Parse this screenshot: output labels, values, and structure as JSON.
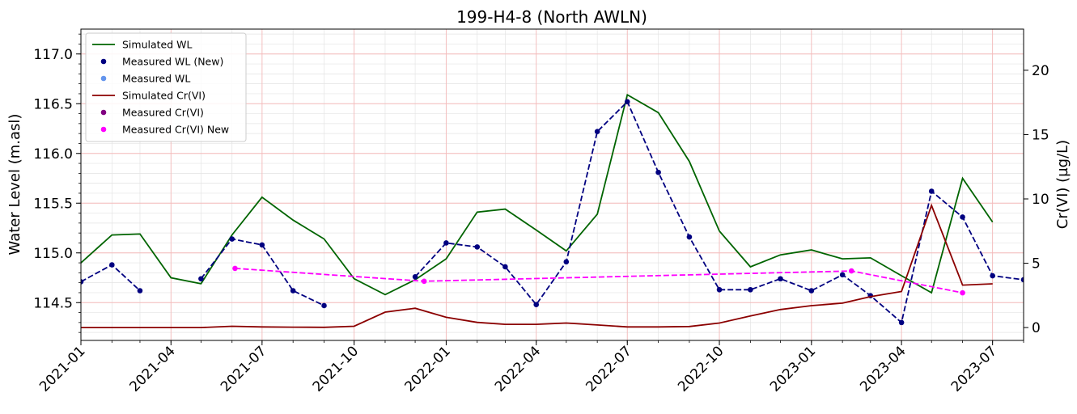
{
  "chart_data": {
    "type": "line",
    "title": "199-H4-8 (North AWLN)",
    "ylabel": "Water Level (m.asl)",
    "y2label": "Cr(VI) (µg/L)",
    "xlim": [
      "2021-01-01",
      "2023-08-01"
    ],
    "ylim": [
      114.12,
      117.25
    ],
    "y2lim": [
      -1,
      23.2
    ],
    "x_ticks": [
      "2021-01",
      "2021-04",
      "2021-07",
      "2021-10",
      "2022-01",
      "2022-04",
      "2022-07",
      "2022-10",
      "2023-01",
      "2023-04",
      "2023-07"
    ],
    "y_ticks": [
      114.5,
      115.0,
      115.5,
      116.0,
      116.5,
      117.0
    ],
    "y_tick_labels": [
      "114.5",
      "115.0",
      "115.5",
      "116.0",
      "116.5",
      "117.0"
    ],
    "y2_ticks": [
      0,
      5,
      10,
      15,
      20
    ],
    "y2_tick_labels": [
      "0",
      "5",
      "10",
      "15",
      "20"
    ],
    "grid": true,
    "legend_position": "top-left",
    "series": [
      {
        "name": "Simulated WL",
        "axis": "left",
        "kind": "line",
        "color": "#006400",
        "x": [
          "2021-01-01",
          "2021-02-01",
          "2021-03-01",
          "2021-04-01",
          "2021-05-01",
          "2021-06-01",
          "2021-07-01",
          "2021-08-01",
          "2021-09-01",
          "2021-10-01",
          "2021-11-01",
          "2021-12-01",
          "2022-01-01",
          "2022-02-01",
          "2022-03-01",
          "2022-04-01",
          "2022-05-01",
          "2022-06-01",
          "2022-07-01",
          "2022-08-01",
          "2022-09-01",
          "2022-10-01",
          "2022-11-01",
          "2022-12-01",
          "2023-01-01",
          "2023-02-01",
          "2023-03-01",
          "2023-04-01",
          "2023-05-01",
          "2023-06-01",
          "2023-07-01"
        ],
        "y": [
          114.9,
          115.18,
          115.19,
          114.75,
          114.69,
          115.18,
          115.56,
          115.33,
          115.14,
          114.74,
          114.58,
          114.73,
          114.94,
          115.41,
          115.44,
          115.23,
          115.02,
          115.39,
          116.59,
          116.41,
          115.92,
          115.22,
          114.86,
          114.98,
          115.03,
          114.94,
          114.95,
          114.77,
          114.6,
          115.75,
          115.31
        ]
      },
      {
        "name": "Measured WL (New)",
        "axis": "left",
        "kind": "dashed-markers",
        "color": "#000080",
        "segments": [
          {
            "x": [
              "2021-01-01",
              "2021-02-01",
              "2021-03-01"
            ],
            "y": [
              114.71,
              114.88,
              114.62
            ]
          },
          {
            "x": [
              "2021-05-01",
              "2021-06-01",
              "2021-07-01",
              "2021-08-01",
              "2021-09-01"
            ],
            "y": [
              114.74,
              115.14,
              115.08,
              114.62,
              114.47
            ]
          },
          {
            "x": [
              "2021-12-01",
              "2022-01-01",
              "2022-02-01",
              "2022-03-01",
              "2022-04-01",
              "2022-05-01",
              "2022-06-01",
              "2022-07-01",
              "2022-08-01",
              "2022-09-01",
              "2022-10-01",
              "2022-11-01",
              "2022-12-01",
              "2023-01-01",
              "2023-02-01",
              "2023-03-01",
              "2023-04-01",
              "2023-05-01",
              "2023-06-01",
              "2023-07-01",
              "2023-08-01"
            ],
            "y": [
              114.76,
              115.1,
              115.06,
              114.86,
              114.48,
              114.91,
              116.22,
              116.52,
              115.81,
              115.16,
              114.63,
              114.63,
              114.74,
              114.62,
              114.78,
              114.57,
              114.3,
              115.62,
              115.36,
              114.77,
              114.73
            ]
          }
        ]
      },
      {
        "name": "Measured WL",
        "axis": "left",
        "kind": "markers",
        "color": "#6495ed",
        "x": [],
        "y": []
      },
      {
        "name": "Simulated Cr(VI)",
        "axis": "right",
        "kind": "line",
        "color": "#8b0000",
        "x": [
          "2021-01-01",
          "2021-02-01",
          "2021-03-01",
          "2021-04-01",
          "2021-05-01",
          "2021-06-01",
          "2021-07-01",
          "2021-08-01",
          "2021-09-01",
          "2021-10-01",
          "2021-11-01",
          "2021-12-01",
          "2022-01-01",
          "2022-02-01",
          "2022-03-01",
          "2022-04-01",
          "2022-05-01",
          "2022-06-01",
          "2022-07-01",
          "2022-08-01",
          "2022-09-01",
          "2022-10-01",
          "2022-11-01",
          "2022-12-01",
          "2023-01-01",
          "2023-02-01",
          "2023-03-01",
          "2023-04-01",
          "2023-05-01",
          "2023-06-01",
          "2023-07-01"
        ],
        "y": [
          0.0,
          0.0,
          0.0,
          0.0,
          0.0,
          0.1,
          0.05,
          0.03,
          0.02,
          0.1,
          1.2,
          1.5,
          0.8,
          0.4,
          0.25,
          0.25,
          0.35,
          0.2,
          0.05,
          0.05,
          0.08,
          0.35,
          0.9,
          1.4,
          1.7,
          1.9,
          2.4,
          2.8,
          9.5,
          3.3,
          3.4
        ]
      },
      {
        "name": "Measured Cr(VI)",
        "axis": "right",
        "kind": "markers",
        "color": "#800080",
        "x": [],
        "y": []
      },
      {
        "name": "Measured Cr(VI) New",
        "axis": "right",
        "kind": "dashed-markers",
        "color": "#ff00ff",
        "x": [
          "2021-06-04",
          "2021-12-10",
          "2023-02-10",
          "2023-06-01"
        ],
        "y": [
          4.6,
          3.6,
          4.4,
          2.7
        ]
      }
    ]
  }
}
